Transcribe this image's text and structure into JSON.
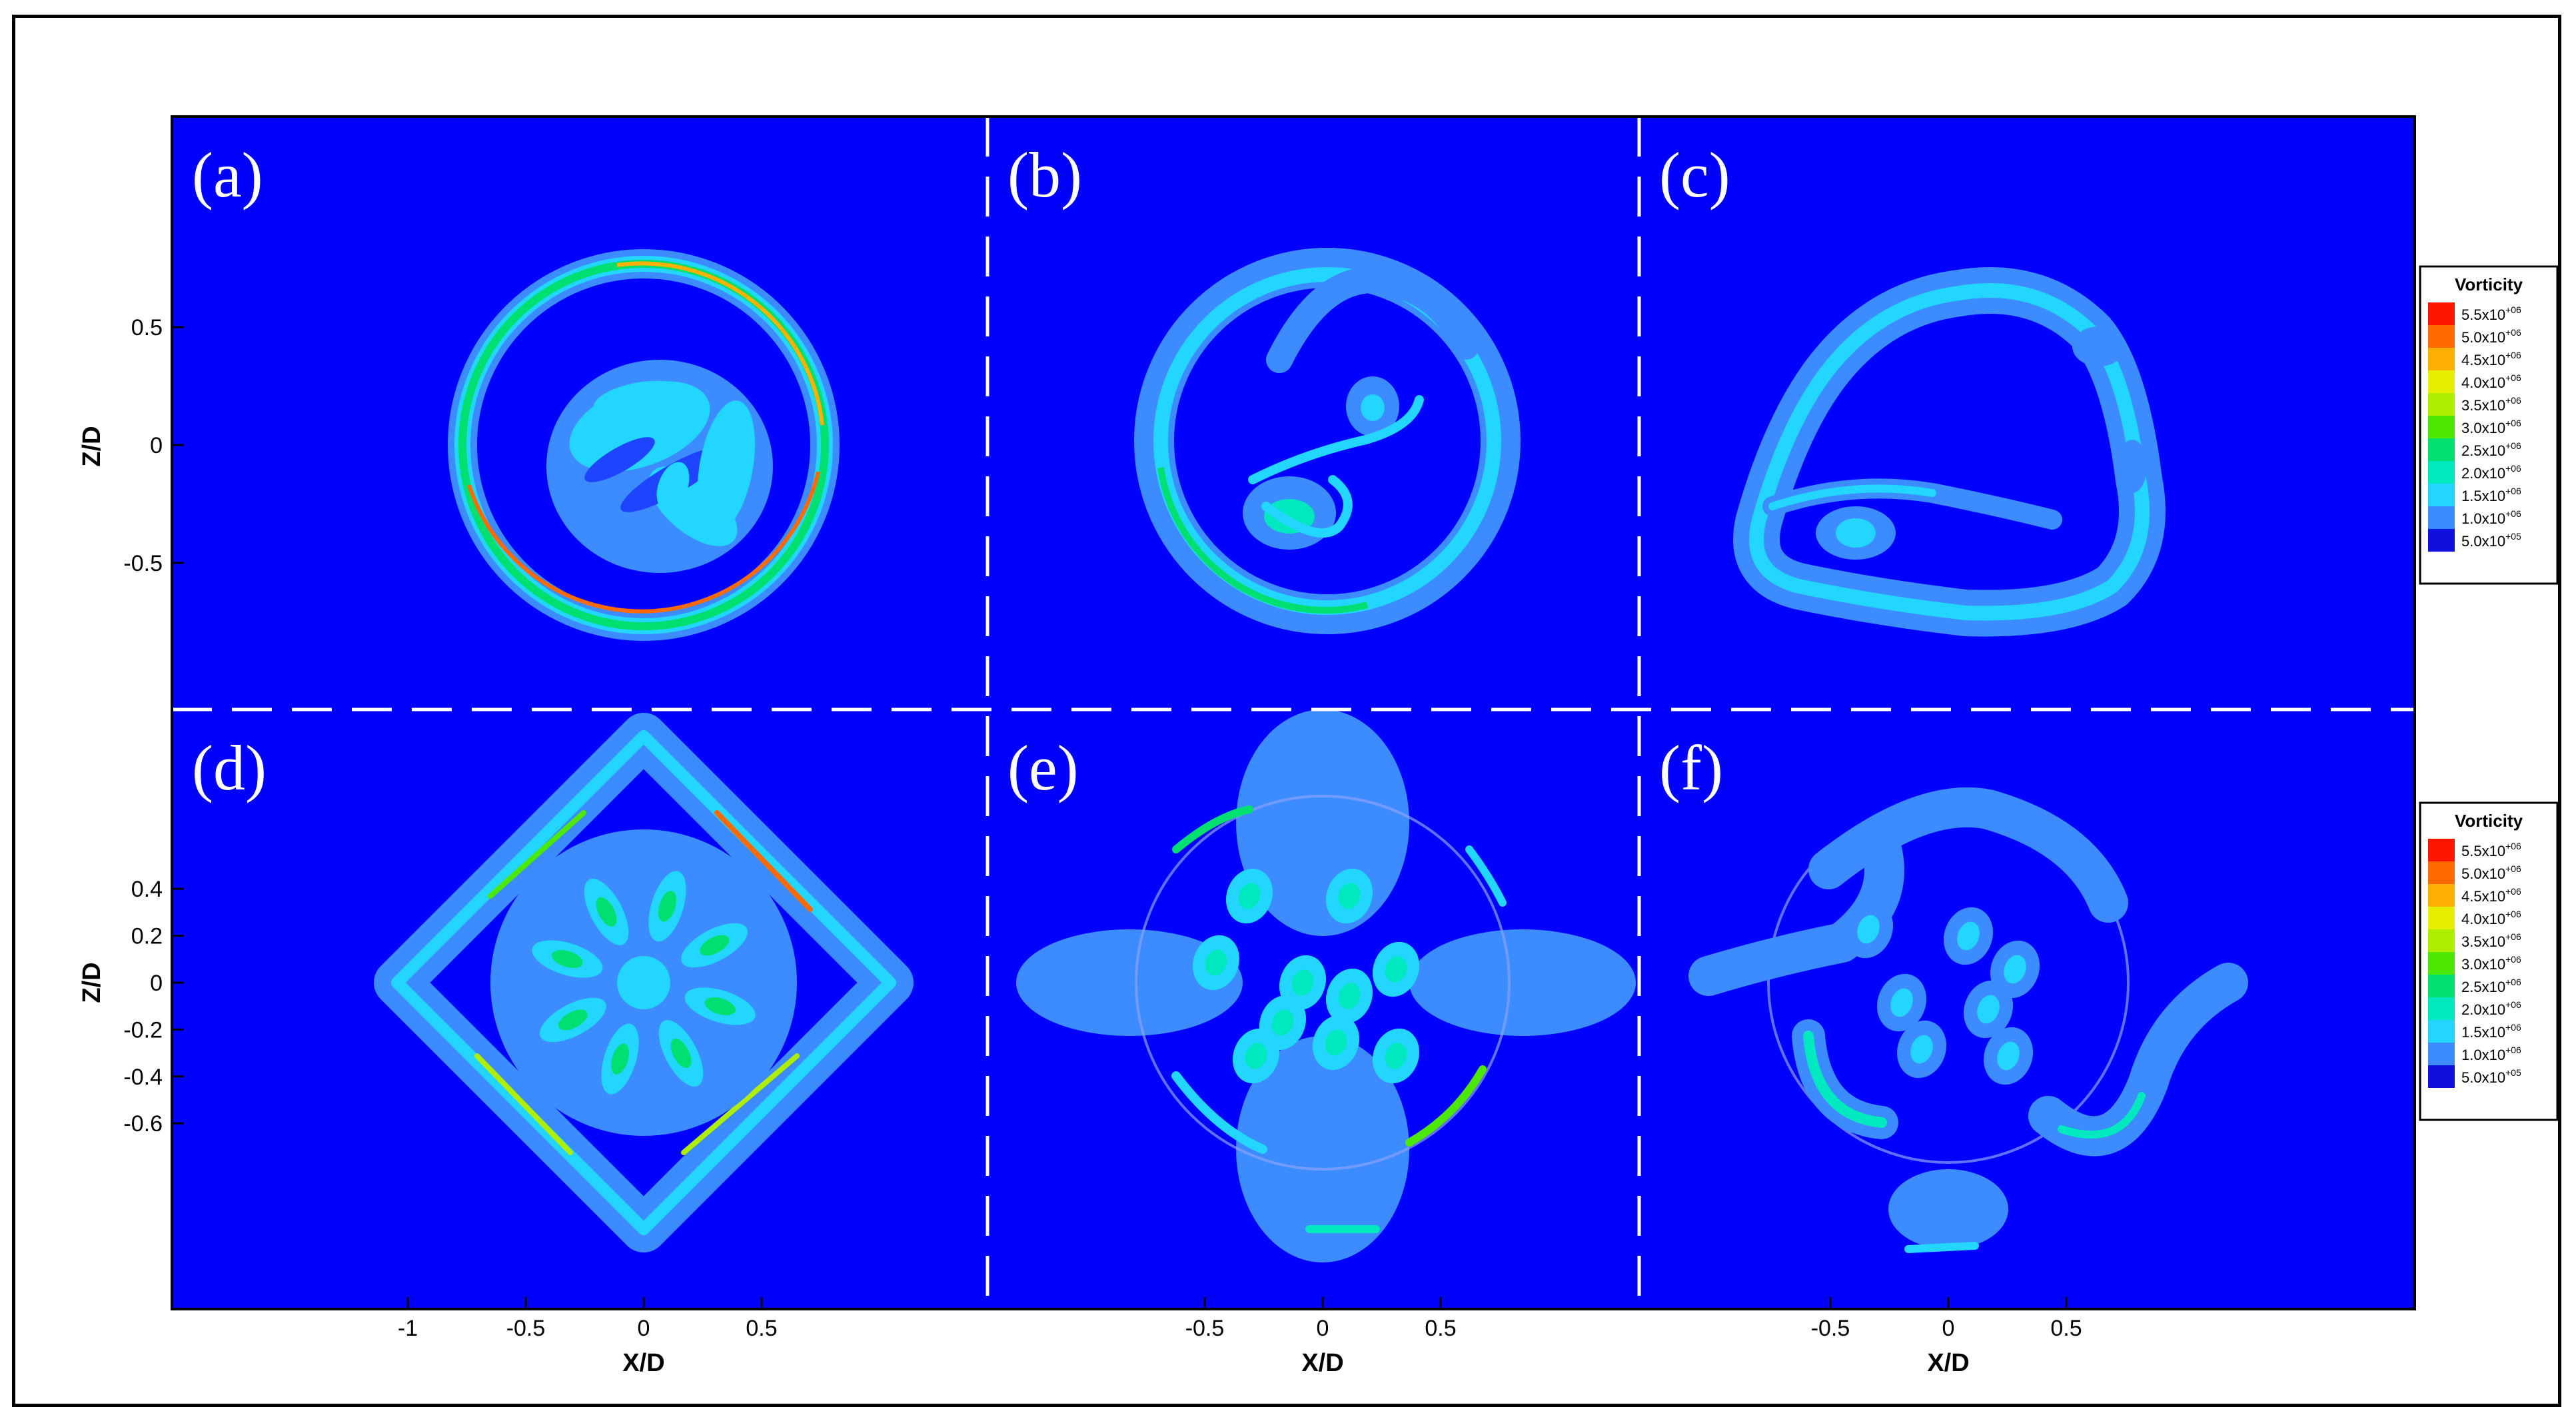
{
  "chart_data": {
    "type": "heatmap",
    "colors": {
      "background": "#0000ff",
      "levels": [
        "#1e44ff",
        "#3c8cff",
        "#22d6ff",
        "#00e8c0",
        "#00e070",
        "#4ce800",
        "#b0ee00",
        "#e6ee00",
        "#ffb000",
        "#ff6a00",
        "#ff1400"
      ]
    },
    "panels": [
      {
        "label": "(a)",
        "row": "top",
        "col": 0,
        "xlim": [
          -1,
          0.72
        ],
        "zlim": [
          -0.55,
          0.7
        ]
      },
      {
        "label": "(b)",
        "row": "top",
        "col": 1,
        "xlim": [
          -0.72,
          0.55
        ],
        "zlim": [
          -0.55,
          0.7
        ]
      },
      {
        "label": "(c)",
        "row": "top",
        "col": 2,
        "xlim": [
          -0.62,
          0.98
        ],
        "zlim": [
          -0.55,
          0.7
        ]
      },
      {
        "label": "(d)",
        "row": "bottom",
        "col": 0,
        "xlim": [
          -1,
          0.72
        ],
        "zlim": [
          -0.7,
          0.57
        ]
      },
      {
        "label": "(e)",
        "row": "bottom",
        "col": 1,
        "xlim": [
          -0.72,
          0.55
        ],
        "zlim": [
          -0.7,
          0.57
        ]
      },
      {
        "label": "(f)",
        "row": "bottom",
        "col": 2,
        "xlim": [
          -0.62,
          0.98
        ],
        "zlim": [
          -0.7,
          0.57
        ]
      }
    ],
    "top_z_ticks": [
      {
        "value": 0.5,
        "text": "0.5"
      },
      {
        "value": 0,
        "text": "0"
      },
      {
        "value": -0.5,
        "text": "-0.5"
      }
    ],
    "bottom_z_ticks": [
      {
        "value": 0.4,
        "text": "0.4"
      },
      {
        "value": 0.2,
        "text": "0.2"
      },
      {
        "value": 0,
        "text": "0"
      },
      {
        "value": -0.2,
        "text": "-0.2"
      },
      {
        "value": -0.4,
        "text": "-0.4"
      },
      {
        "value": -0.6,
        "text": "-0.6"
      }
    ],
    "x_ticks": [
      [
        {
          "value": -1,
          "text": "-1"
        },
        {
          "value": -0.5,
          "text": "-0.5"
        },
        {
          "value": 0,
          "text": "0"
        },
        {
          "value": 0.5,
          "text": "0.5"
        }
      ],
      [
        {
          "value": -0.5,
          "text": "-0.5"
        },
        {
          "value": 0,
          "text": "0"
        },
        {
          "value": 0.5,
          "text": "0.5"
        }
      ],
      [
        {
          "value": -0.5,
          "text": "-0.5"
        },
        {
          "value": 0,
          "text": "0"
        },
        {
          "value": 0.5,
          "text": "0.5"
        }
      ]
    ],
    "xlabel": "X/D",
    "zlabel": "Z/D",
    "legend": {
      "title": "Vorticity",
      "placement": "right",
      "levels": [
        "5.5x10",
        "5.0x10",
        "4.5x10",
        "4.0x10",
        "3.5x10",
        "3.0x10",
        "2.5x10",
        "2.0x10",
        "1.5x10",
        "1.0x10",
        "5.0x10"
      ],
      "exponents": [
        "+06",
        "+06",
        "+06",
        "+06",
        "+06",
        "+06",
        "+06",
        "+06",
        "+06",
        "+06",
        "+05"
      ]
    }
  }
}
